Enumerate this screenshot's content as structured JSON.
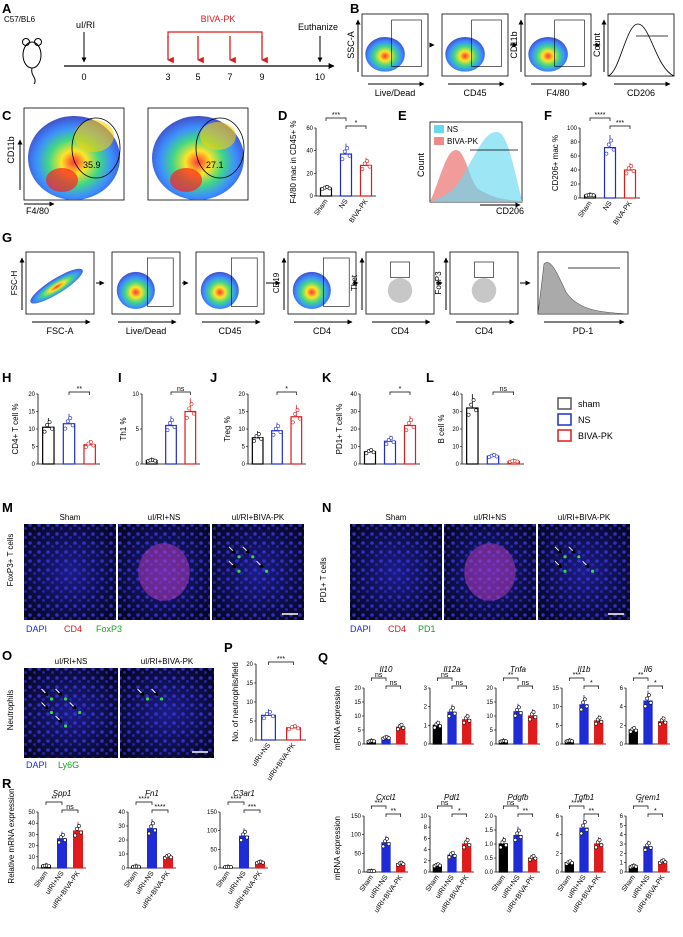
{
  "panels": {
    "A": {
      "label": "A",
      "strain": "C57/BL6",
      "injury": "uI/RI",
      "treatment": "BIVA-PK",
      "endpoint": "Euthanize",
      "days": [
        "0",
        "3",
        "5",
        "7",
        "9",
        "10"
      ]
    },
    "B": {
      "label": "B",
      "gates": [
        {
          "xlabel": "Live/Dead",
          "ylabel": "SSC-A"
        },
        {
          "xlabel": "CD45",
          "ylabel": ""
        },
        {
          "xlabel": "F4/80",
          "ylabel": "CD11b"
        },
        {
          "xlabel": "CD206",
          "ylabel": "Count"
        }
      ]
    },
    "C": {
      "label": "C",
      "xlabel": "F4/80",
      "ylabel": "CD11b",
      "values": [
        "35.9",
        "27.1"
      ]
    },
    "D": {
      "label": "D",
      "ylabel": "F4/80 mac in CD45+ %",
      "groups": [
        "Sham",
        "NS",
        "BIVA-PK"
      ],
      "sig": [
        "***",
        "*"
      ]
    },
    "E": {
      "label": "E",
      "legend": [
        "NS",
        "BIVA-PK"
      ],
      "xlabel": "CD206",
      "ylabel": "Count"
    },
    "F": {
      "label": "F",
      "ylabel": "CD206+ mac %",
      "groups": [
        "Sham",
        "NS",
        "BIVA-PK"
      ],
      "sig": [
        "****",
        "***"
      ]
    },
    "G": {
      "label": "G",
      "gates": [
        {
          "xlabel": "FSC-A",
          "ylabel": "FSC-H"
        },
        {
          "xlabel": "Live/Dead",
          "ylabel": ""
        },
        {
          "xlabel": "CD45",
          "ylabel": ""
        },
        {
          "xlabel": "CD4",
          "ylabel": "CD19"
        },
        {
          "xlabel": "CD4",
          "ylabel": "Tbet"
        },
        {
          "xlabel": "CD4",
          "ylabel": "FoxP3"
        },
        {
          "xlabel": "PD-1",
          "ylabel": ""
        }
      ]
    },
    "H": {
      "label": "H",
      "ylabel": "CD4+ T cell %",
      "sig": "**"
    },
    "I": {
      "label": "I",
      "ylabel": "Th1 %",
      "sig": "ns"
    },
    "J": {
      "label": "J",
      "ylabel": "Treg %",
      "sig": "*"
    },
    "K": {
      "label": "K",
      "ylabel": "PD1+ T cell %",
      "sig": "*"
    },
    "L": {
      "label": "L",
      "ylabel": "B cell %",
      "sig": "ns"
    },
    "legend": [
      "sham",
      "NS",
      "BIVA-PK"
    ],
    "M": {
      "label": "M",
      "side": "FoxP3+ T cells",
      "titles": [
        "Sham",
        "uI/RI+NS",
        "uI/RI+BIVA-PK"
      ],
      "stains": [
        "DAPI",
        "CD4",
        "FoxP3"
      ]
    },
    "N": {
      "label": "N",
      "side": "PD1+ T cells",
      "titles": [
        "Sham",
        "uI/RI+NS",
        "uI/RI+BIVA-PK"
      ],
      "stains": [
        "DAPI",
        "CD4",
        "PD1"
      ]
    },
    "O": {
      "label": "O",
      "side": "Neutrophils",
      "titles": [
        "uI/RI+NS",
        "uI/RI+BIVA-PK"
      ],
      "stains": [
        "DAPI",
        "Ly6G"
      ]
    },
    "P": {
      "label": "P",
      "ylabel": "No. of neutrophils/field",
      "groups": [
        "uIRI+NS",
        "uIRI+BIVA-PK"
      ],
      "sig": "***"
    },
    "Q": {
      "label": "Q",
      "ylabel": "mRNA expression",
      "groups": [
        "Sham",
        "uIRI+NS",
        "uIRI+BIVA-PK"
      ],
      "top": [
        {
          "gene": "Il10",
          "sig": [
            "ns",
            "ns"
          ],
          "ticks": [
            "0",
            "5",
            "10",
            "15",
            "20"
          ]
        },
        {
          "gene": "Il12a",
          "sig": [
            "ns",
            "ns"
          ],
          "ticks": [
            "0",
            "1",
            "2",
            "3"
          ]
        },
        {
          "gene": "Tnfa",
          "sig": [
            "**",
            "ns"
          ],
          "ticks": [
            "0",
            "5",
            "10",
            "15",
            "20"
          ]
        },
        {
          "gene": "Il1b",
          "sig": [
            "***",
            "*"
          ],
          "ticks": [
            "0",
            "5",
            "10",
            "15"
          ]
        },
        {
          "gene": "Il6",
          "sig": [
            "**",
            "*"
          ],
          "ticks": [
            "0",
            "2",
            "4",
            "6"
          ]
        }
      ],
      "bottom": [
        {
          "gene": "Cxcl1",
          "sig": [
            "***",
            "**"
          ],
          "ticks": [
            "0",
            "50",
            "100",
            "150"
          ]
        },
        {
          "gene": "Pdl1",
          "sig": [
            "ns",
            "*"
          ],
          "ticks": [
            "0",
            "2",
            "4",
            "6",
            "8",
            "10"
          ]
        },
        {
          "gene": "Pdgfb",
          "sig": [
            "ns",
            "**"
          ],
          "ticks": [
            "0.0",
            "0.5",
            "1.0",
            "1.5",
            "2.0"
          ]
        },
        {
          "gene": "Tgfb1",
          "sig": [
            "****",
            "**"
          ],
          "ticks": [
            "0",
            "2",
            "4",
            "6"
          ]
        },
        {
          "gene": "Grem1",
          "sig": [
            "**",
            "*"
          ],
          "ticks": [
            "0",
            "1",
            "2",
            "3",
            "4",
            "5",
            "6"
          ]
        }
      ]
    },
    "R": {
      "label": "R",
      "ylabel": "Relative mRNA expression",
      "genes": [
        {
          "gene": "Spp1",
          "sig": [
            "**",
            "ns"
          ],
          "ticks": [
            "0",
            "10",
            "20",
            "30",
            "40",
            "50"
          ]
        },
        {
          "gene": "Fn1",
          "sig": [
            "****",
            "****"
          ],
          "ticks": [
            "0",
            "10",
            "20",
            "30",
            "40"
          ]
        },
        {
          "gene": "C3ar1",
          "sig": [
            "****",
            "***"
          ],
          "ticks": [
            "0",
            "50",
            "100",
            "150"
          ]
        }
      ]
    }
  },
  "colors": {
    "sham": "#000000",
    "ns": "#1f2bd6",
    "biva": "#e01b1b",
    "timeline": "#e01b1b",
    "hist_ns": "#67d9f0",
    "hist_biva": "#f08a8a"
  },
  "chart_data": [
    {
      "type": "bar",
      "panel": "D",
      "categories": [
        "Sham",
        "NS",
        "BIVA-PK"
      ],
      "values": [
        7,
        37,
        27
      ],
      "ylim": [
        0,
        60
      ],
      "ticks": [
        0,
        20,
        40,
        60
      ]
    },
    {
      "type": "bar",
      "panel": "F",
      "categories": [
        "Sham",
        "NS",
        "BIVA-PK"
      ],
      "values": [
        4,
        72,
        40
      ],
      "ylim": [
        0,
        100
      ],
      "ticks": [
        0,
        20,
        40,
        60,
        80,
        100
      ]
    },
    {
      "type": "bar",
      "panel": "H",
      "categories": [
        "sham",
        "NS",
        "BIVA-PK"
      ],
      "values": [
        10.5,
        11.5,
        5.5
      ],
      "ylim": [
        0,
        20
      ],
      "ticks": [
        0,
        5,
        10,
        15,
        20
      ]
    },
    {
      "type": "bar",
      "panel": "I",
      "categories": [
        "sham",
        "NS",
        "BIVA-PK"
      ],
      "values": [
        0.5,
        5.5,
        7.5
      ],
      "ylim": [
        0,
        10
      ],
      "ticks": [
        0,
        5,
        10
      ]
    },
    {
      "type": "bar",
      "panel": "J",
      "categories": [
        "sham",
        "NS",
        "BIVA-PK"
      ],
      "values": [
        7.5,
        9.5,
        13.5
      ],
      "ylim": [
        0,
        20
      ],
      "ticks": [
        0,
        5,
        10,
        15,
        20
      ]
    },
    {
      "type": "bar",
      "panel": "K",
      "categories": [
        "sham",
        "NS",
        "BIVA-PK"
      ],
      "values": [
        7,
        13,
        22
      ],
      "ylim": [
        0,
        40
      ],
      "ticks": [
        0,
        10,
        20,
        30,
        40
      ]
    },
    {
      "type": "bar",
      "panel": "L",
      "categories": [
        "sham",
        "NS",
        "BIVA-PK"
      ],
      "values": [
        32,
        4.5,
        1.5
      ],
      "ylim": [
        0,
        40
      ],
      "ticks": [
        0,
        10,
        20,
        30,
        40
      ]
    },
    {
      "type": "bar",
      "panel": "P",
      "categories": [
        "uIRI+NS",
        "uIRI+BIVA-PK"
      ],
      "values": [
        6.5,
        3.2
      ],
      "ylim": [
        0,
        20
      ],
      "ticks": [
        0,
        5,
        10,
        15,
        20
      ]
    },
    {
      "type": "bar",
      "panel": "Q-Il10",
      "categories": [
        "Sham",
        "uIRI+NS",
        "uIRI+BIVA-PK"
      ],
      "values": [
        1,
        2.2,
        6
      ],
      "ylim": [
        0,
        20
      ]
    },
    {
      "type": "bar",
      "panel": "Q-Il12a",
      "categories": [
        "Sham",
        "uIRI+NS",
        "uIRI+BIVA-PK"
      ],
      "values": [
        1,
        1.7,
        1.3
      ],
      "ylim": [
        0,
        3
      ]
    },
    {
      "type": "bar",
      "panel": "Q-Tnfa",
      "categories": [
        "Sham",
        "uIRI+NS",
        "uIRI+BIVA-PK"
      ],
      "values": [
        1,
        11.5,
        10
      ],
      "ylim": [
        0,
        20
      ]
    },
    {
      "type": "bar",
      "panel": "Q-Il1b",
      "categories": [
        "Sham",
        "uIRI+NS",
        "uIRI+BIVA-PK"
      ],
      "values": [
        0.8,
        10.5,
        6.2
      ],
      "ylim": [
        0,
        15
      ]
    },
    {
      "type": "bar",
      "panel": "Q-Il6",
      "categories": [
        "Sham",
        "uIRI+NS",
        "uIRI+BIVA-PK"
      ],
      "values": [
        1.5,
        4.6,
        2.4
      ],
      "ylim": [
        0,
        6
      ]
    },
    {
      "type": "bar",
      "panel": "Q-Cxcl1",
      "categories": [
        "Sham",
        "uIRI+NS",
        "uIRI+BIVA-PK"
      ],
      "values": [
        1,
        78,
        22
      ],
      "ylim": [
        0,
        150
      ]
    },
    {
      "type": "bar",
      "panel": "Q-Pdl1",
      "categories": [
        "Sham",
        "uIRI+NS",
        "uIRI+BIVA-PK"
      ],
      "values": [
        1.2,
        3,
        5
      ],
      "ylim": [
        0,
        10
      ]
    },
    {
      "type": "bar",
      "panel": "Q-Pdgfb",
      "categories": [
        "Sham",
        "uIRI+NS",
        "uIRI+BIVA-PK"
      ],
      "values": [
        1.0,
        1.3,
        0.5
      ],
      "ylim": [
        0,
        2
      ]
    },
    {
      "type": "bar",
      "panel": "Q-Tgfb1",
      "categories": [
        "Sham",
        "uIRI+NS",
        "uIRI+BIVA-PK"
      ],
      "values": [
        1,
        4.7,
        3
      ],
      "ylim": [
        0,
        6
      ]
    },
    {
      "type": "bar",
      "panel": "Q-Grem1",
      "categories": [
        "Sham",
        "uIRI+NS",
        "uIRI+BIVA-PK"
      ],
      "values": [
        0.6,
        2.7,
        1.1
      ],
      "ylim": [
        0,
        6
      ]
    },
    {
      "type": "bar",
      "panel": "R-Spp1",
      "categories": [
        "Sham",
        "uIRI+NS",
        "uIRI+BIVA-PK"
      ],
      "values": [
        2,
        26,
        33
      ],
      "ylim": [
        0,
        50
      ]
    },
    {
      "type": "bar",
      "panel": "R-Fn1",
      "categories": [
        "Sham",
        "uIRI+NS",
        "uIRI+BIVA-PK"
      ],
      "values": [
        1,
        28,
        8
      ],
      "ylim": [
        0,
        40
      ]
    },
    {
      "type": "bar",
      "panel": "R-C3ar1",
      "categories": [
        "Sham",
        "uIRI+NS",
        "uIRI+BIVA-PK"
      ],
      "values": [
        2,
        85,
        15
      ],
      "ylim": [
        0,
        150
      ]
    }
  ]
}
